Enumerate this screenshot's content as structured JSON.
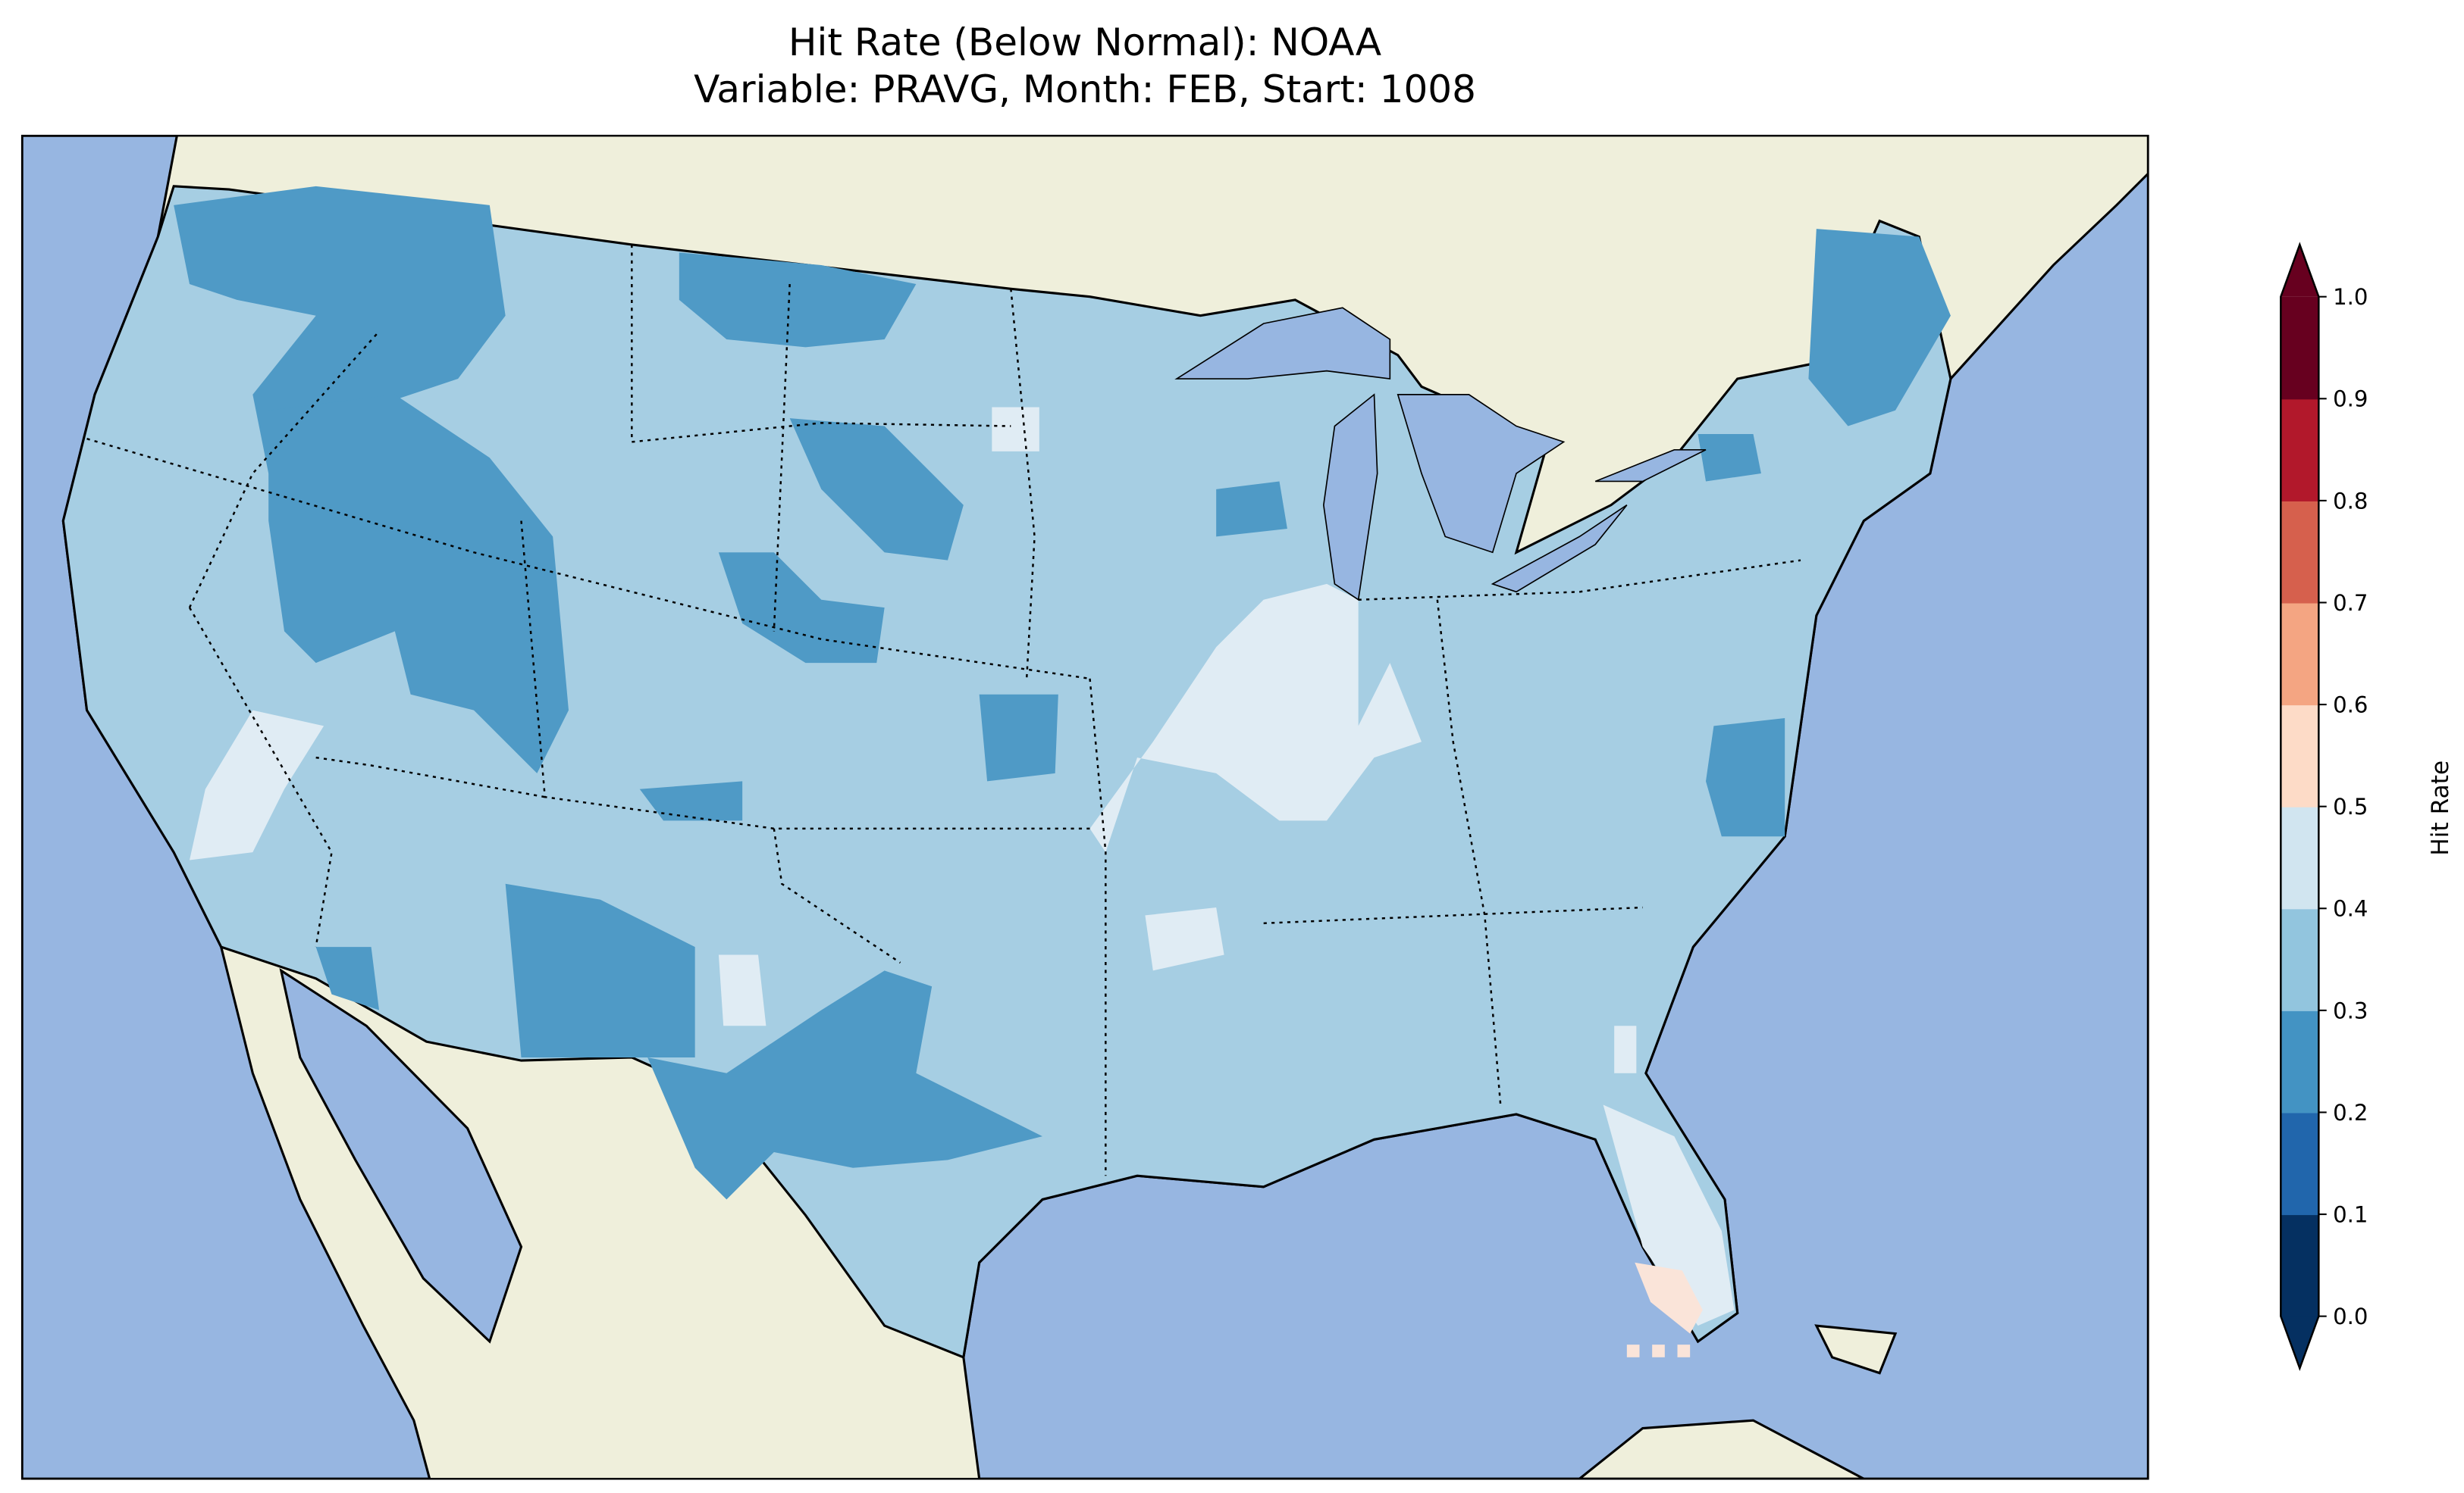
{
  "title": {
    "line1": "Hit Rate (Below Normal): NOAA",
    "line2": "Variable: PRAVG, Month: FEB, Start: 1008"
  },
  "map": {
    "region": "Contiguous United States",
    "colors": {
      "ocean": "#97b6e1",
      "land": "#efefdb",
      "coast": "#000000"
    }
  },
  "colorbar": {
    "label": "Hit Rate",
    "ticks": [
      "0.0",
      "0.1",
      "0.2",
      "0.3",
      "0.4",
      "0.5",
      "0.6",
      "0.7",
      "0.8",
      "0.9",
      "1.0"
    ],
    "colors": [
      "#053061",
      "#2166ac",
      "#4393c3",
      "#92c5de",
      "#d1e5f0",
      "#fddbc7",
      "#f4a582",
      "#d6604d",
      "#b2182b",
      "#67001f"
    ],
    "extend": "both"
  },
  "chart_data": {
    "type": "heatmap",
    "title": "Hit Rate (Below Normal): NOAA / Variable: PRAVG, Month: FEB, Start: 1008",
    "value_label": "Hit Rate",
    "range": [
      0.0,
      1.0
    ],
    "levels": [
      0.0,
      0.1,
      0.2,
      0.3,
      0.4,
      0.5,
      0.6,
      0.7,
      0.8,
      0.9,
      1.0
    ],
    "dominant_bin": "0.3-0.4",
    "regions": [
      {
        "area": "most of CONUS",
        "bin": "0.3-0.4"
      },
      {
        "area": "Pacific Northwest / Idaho / Nevada / Utah",
        "bin": "0.2-0.3"
      },
      {
        "area": "Montana / Wyoming / Dakotas patches",
        "bin": "0.2-0.3"
      },
      {
        "area": "New Mexico / West & Central Texas",
        "bin": "0.2-0.3"
      },
      {
        "area": "Maine / Northern New England",
        "bin": "0.2-0.3"
      },
      {
        "area": "Eastern North Carolina / Virginia coast",
        "bin": "0.2-0.3"
      },
      {
        "area": "Illinois / Missouri / Indiana",
        "bin": "0.4-0.5"
      },
      {
        "area": "Florida peninsula",
        "bin": "0.4-0.5"
      },
      {
        "area": "Southern California / Nevada",
        "bin": "0.4-0.5"
      },
      {
        "area": "Southwest Florida",
        "bin": "0.5-0.6"
      }
    ]
  }
}
